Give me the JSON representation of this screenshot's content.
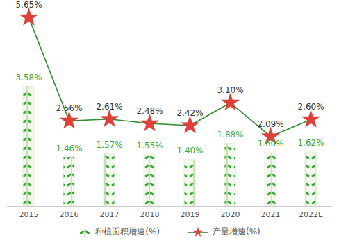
{
  "chart_data": {
    "type": "bar",
    "categories": [
      "2015",
      "2016",
      "2017",
      "2018",
      "2019",
      "2020",
      "2021",
      "2022E"
    ],
    "series": [
      {
        "name": "种植面积增速(%)",
        "type": "bar",
        "color": "#3aa63a",
        "values": [
          3.58,
          1.46,
          1.57,
          1.55,
          1.4,
          1.88,
          1.6,
          1.62
        ],
        "value_labels": [
          "3.58%",
          "1.46%",
          "1.57%",
          "1.55%",
          "1.40%",
          "1.88%",
          "1.60%",
          "1.62%"
        ]
      },
      {
        "name": "产量增速(%)",
        "type": "line",
        "color": "#2e8b2e",
        "marker": "star",
        "values": [
          5.65,
          2.56,
          2.61,
          2.48,
          2.42,
          3.1,
          2.09,
          2.6
        ],
        "value_labels": [
          "5.65%",
          "2.56%",
          "2.61%",
          "2.48%",
          "2.42%",
          "3.10%",
          "2.09%",
          "2.60%"
        ]
      }
    ],
    "ylim": [
      0,
      6
    ],
    "tick_labels": "x",
    "data_labels": true,
    "grid": false,
    "legend": "bottom"
  }
}
